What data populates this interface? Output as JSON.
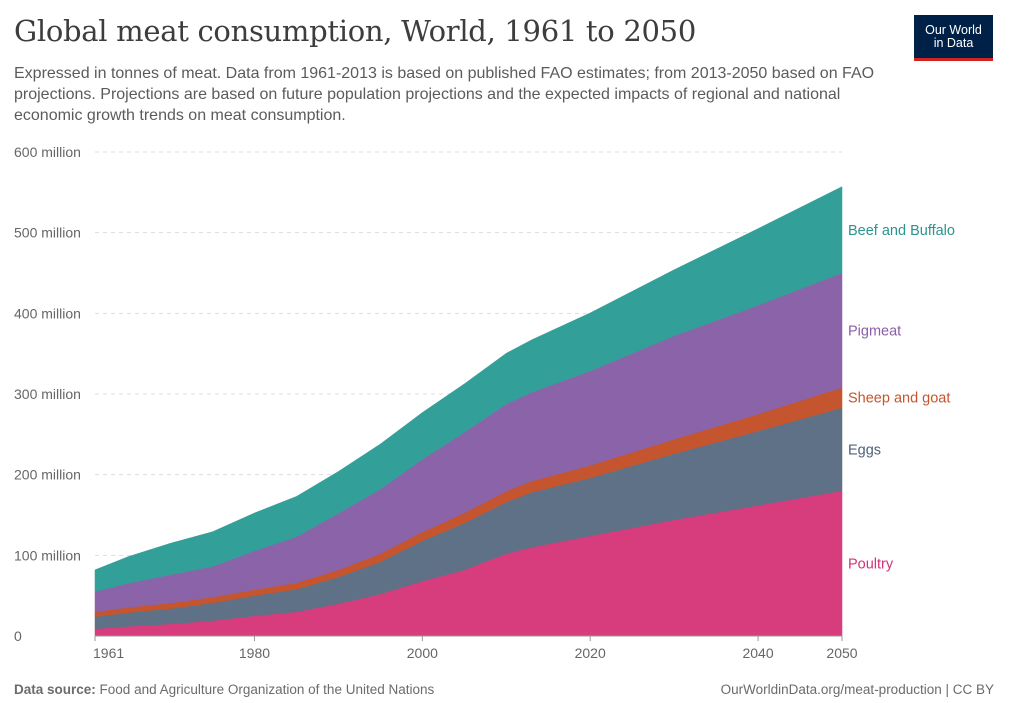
{
  "header": {
    "title": "Global meat consumption, World, 1961 to 2050",
    "subtitle": "Expressed in tonnes of meat. Data from 1961-2013 is based on published FAO estimates; from 2013-2050 based on FAO projections. Projections are based on future population projections and the expected impacts of regional and national economic growth trends on meat consumption."
  },
  "logo": {
    "line1": "Our World",
    "line2": "in Data"
  },
  "footer": {
    "source_label": "Data source:",
    "source": "Food and Agriculture Organization of the United Nations",
    "url": "OurWorldinData.org/meat-production | CC BY"
  },
  "chart_data": {
    "type": "area",
    "stacked": true,
    "x": [
      1961,
      1965,
      1970,
      1975,
      1980,
      1985,
      1990,
      1995,
      2000,
      2005,
      2010,
      2013,
      2020,
      2030,
      2040,
      2050
    ],
    "xticks": [
      1961,
      1980,
      2000,
      2020,
      2040,
      2050
    ],
    "xtick_labels": [
      "1961",
      "1980",
      "2000",
      "2020",
      "2040",
      "2050"
    ],
    "ylim": [
      0,
      600000000
    ],
    "yticks": [
      0,
      100000000,
      200000000,
      300000000,
      400000000,
      500000000,
      600000000
    ],
    "ytick_labels": [
      "0",
      "100 million",
      "200 million",
      "300 million",
      "400 million",
      "500 million",
      "600 million"
    ],
    "grid": true,
    "legend": "right",
    "series": [
      {
        "name": "Poultry",
        "color": "#d73c7d",
        "values": [
          9000000,
          12000000,
          15000000,
          19000000,
          25000000,
          30000000,
          40000000,
          52000000,
          68000000,
          82000000,
          102000000,
          110000000,
          124000000,
          144000000,
          162000000,
          180000000
        ]
      },
      {
        "name": "Eggs",
        "color": "#5e7186",
        "values": [
          15000000,
          17000000,
          19000000,
          22000000,
          25000000,
          28000000,
          33000000,
          40000000,
          50000000,
          58000000,
          64000000,
          68000000,
          72000000,
          82000000,
          92000000,
          103000000
        ]
      },
      {
        "name": "Sheep and goat",
        "color": "#c4552e",
        "values": [
          6000000,
          6500000,
          7000000,
          7200000,
          7500000,
          8000000,
          9000000,
          10000000,
          11000000,
          12500000,
          13500000,
          14000000,
          15500000,
          18000000,
          21000000,
          25000000
        ]
      },
      {
        "name": "Pigmeat",
        "color": "#8b63a9",
        "values": [
          25000000,
          30000000,
          35000000,
          38000000,
          48000000,
          57000000,
          70000000,
          80000000,
          90000000,
          100000000,
          108000000,
          110000000,
          117000000,
          128000000,
          135000000,
          142000000
        ]
      },
      {
        "name": "Beef and Buffalo",
        "color": "#339f99",
        "values": [
          27000000,
          33000000,
          39000000,
          43000000,
          47000000,
          50000000,
          52000000,
          56000000,
          58000000,
          60000000,
          63000000,
          65000000,
          72000000,
          82000000,
          95000000,
          107000000
        ]
      }
    ]
  }
}
